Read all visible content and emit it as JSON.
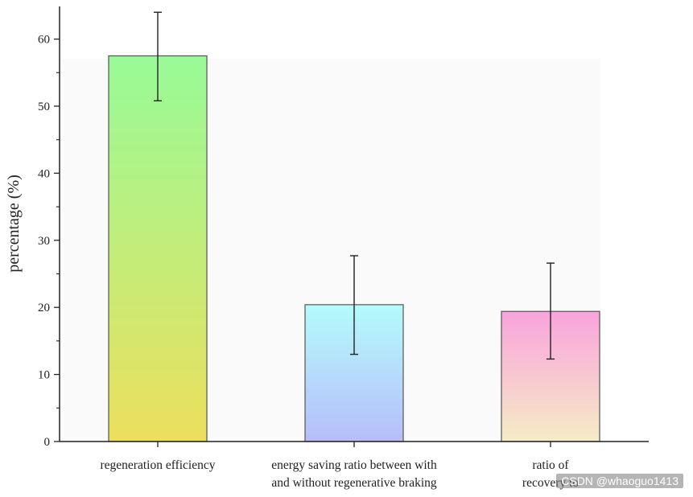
{
  "chart_data": {
    "type": "bar",
    "title": "",
    "xlabel": "",
    "ylabel": "percentage (%)",
    "ylim": [
      0,
      65
    ],
    "yticks": [
      0,
      10,
      20,
      30,
      40,
      50,
      60
    ],
    "categories": [
      [
        "regeneration efficiency"
      ],
      [
        "energy saving ratio between with",
        "and without regenerative braking"
      ],
      [
        "ratio of",
        "recovery to"
      ]
    ],
    "values": [
      57.5,
      20.4,
      19.4
    ],
    "error_low": [
      50.8,
      13.0,
      12.3
    ],
    "error_high": [
      64.0,
      27.7,
      26.6
    ],
    "bar_gradients": [
      {
        "top": "#98fb98",
        "bottom": "#ecdf5c"
      },
      {
        "top": "#b4fbfb",
        "bottom": "#b7bdfb"
      },
      {
        "top": "#f9a3dc",
        "bottom": "#f5ecc6"
      }
    ],
    "grid": false,
    "legend": "none"
  },
  "watermark": "CSDN @whaoguo1413"
}
